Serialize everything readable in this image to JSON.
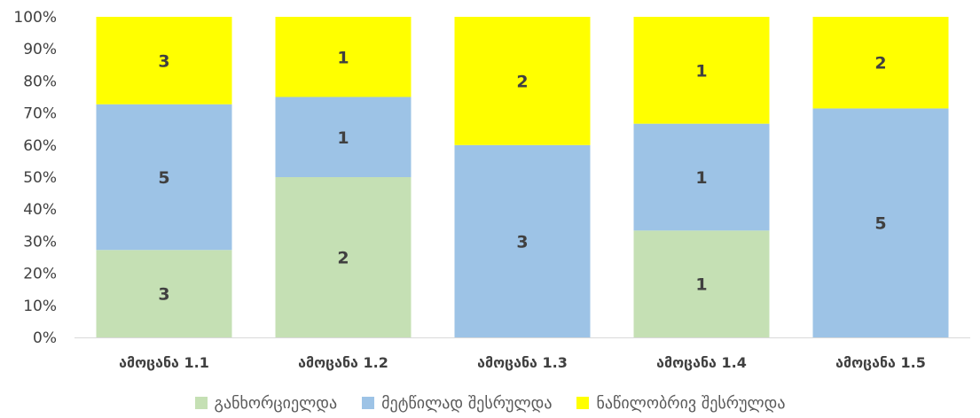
{
  "chart_data": {
    "type": "bar",
    "stacked": "percent",
    "categories": [
      "ამოცანა 1.1",
      "ამოცანა 1.2",
      "ამოცანა 1.3",
      "ამოცანა 1.4",
      "ამოცანა 1.5"
    ],
    "series": [
      {
        "name": "განხორციელდა",
        "color": "#c5e0b4",
        "values": [
          3,
          2,
          0,
          1,
          0
        ]
      },
      {
        "name": "მეტწილად შესრულდა",
        "color": "#9dc3e6",
        "values": [
          5,
          1,
          3,
          1,
          5
        ]
      },
      {
        "name": "ნაწილობრივ შესრულდა",
        "color": "#ffff00",
        "values": [
          3,
          1,
          2,
          1,
          2
        ]
      }
    ],
    "y_ticks": [
      "0%",
      "10%",
      "20%",
      "30%",
      "40%",
      "50%",
      "60%",
      "70%",
      "80%",
      "90%",
      "100%"
    ],
    "ylim": [
      0,
      100
    ],
    "grid": false,
    "legend_position": "bottom"
  }
}
